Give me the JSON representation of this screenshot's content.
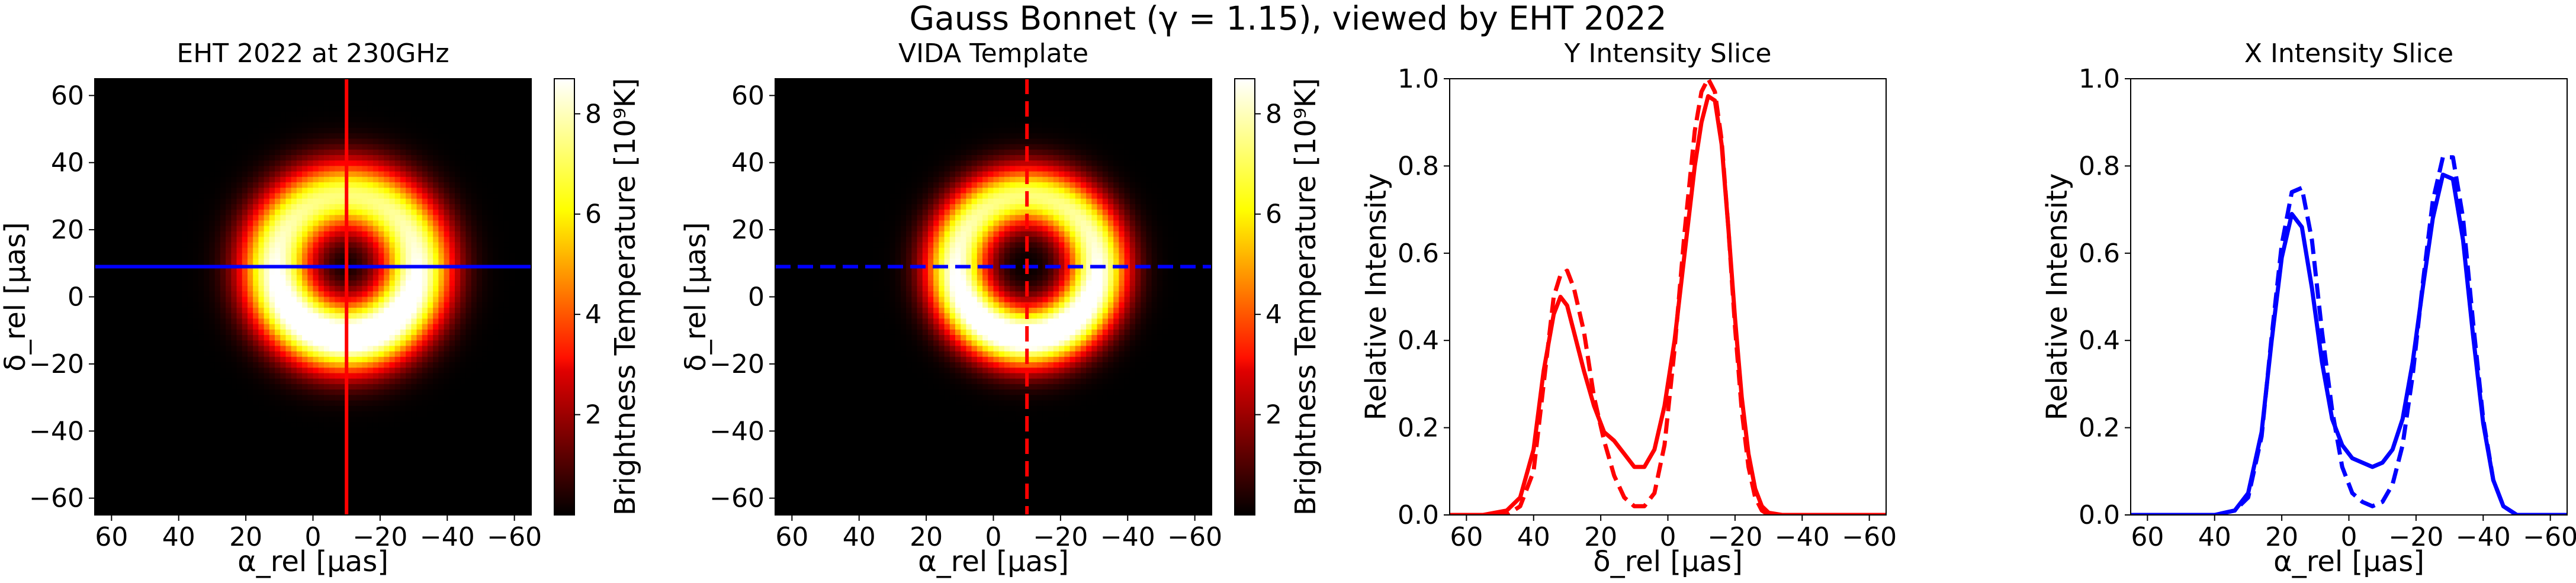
{
  "figure": {
    "suptitle": "Gauss Bonnet (γ = 1.15), viewed by EHT 2022"
  },
  "colorbar_label": "Brightness Temperature [10⁹K]",
  "colors": {
    "hline_blue": "#0000ff",
    "vline_red": "#ff0000",
    "cmap": "hot"
  },
  "chart_data": [
    {
      "type": "heatmap",
      "title": "EHT 2022 at 230GHz",
      "xlabel": "α_rel [μas]",
      "ylabel": "δ_rel [μas]",
      "xlim": [
        65,
        -65
      ],
      "ylim": [
        -65,
        65
      ],
      "xticks": [
        60,
        40,
        20,
        0,
        -20,
        -40,
        -60
      ],
      "yticks": [
        60,
        40,
        20,
        0,
        -20,
        -40,
        -60
      ],
      "ring": {
        "center": [
          -10,
          9
        ],
        "radius": 21,
        "width": 7.5,
        "peak": 8.7,
        "brighter_side": "bottom"
      },
      "colorbar": {
        "range": [
          0,
          8.7
        ],
        "ticks": [
          2,
          4,
          6,
          8
        ]
      },
      "slice_lines": {
        "vertical_x": -10,
        "horizontal_y": 9,
        "style": "solid"
      }
    },
    {
      "type": "heatmap",
      "title": "VIDA Template",
      "xlabel": "α_rel [μas]",
      "ylabel": "δ_rel [μas]",
      "xlim": [
        65,
        -65
      ],
      "ylim": [
        -65,
        65
      ],
      "xticks": [
        60,
        40,
        20,
        0,
        -20,
        -40,
        -60
      ],
      "yticks": [
        60,
        40,
        20,
        0,
        -20,
        -40,
        -60
      ],
      "ring": {
        "center": [
          -10,
          9
        ],
        "radius": 21,
        "width": 6.5,
        "peak": 8.7,
        "brighter_side": "bottom"
      },
      "colorbar": {
        "range": [
          0,
          8.7
        ],
        "ticks": [
          2,
          4,
          6,
          8
        ]
      },
      "slice_lines": {
        "vertical_x": -10,
        "horizontal_y": 9,
        "style": "dashed"
      }
    },
    {
      "type": "line",
      "title": "Y Intensity Slice",
      "xlabel": "δ_rel [μas]",
      "ylabel": "Relative Intensity",
      "xlim": [
        65,
        -65
      ],
      "ylim": [
        0,
        1.0
      ],
      "xticks": [
        60,
        40,
        20,
        0,
        -20,
        -40,
        -60
      ],
      "yticks": [
        0.0,
        0.2,
        0.4,
        0.6,
        0.8,
        1.0
      ],
      "color": "#ff0000",
      "series": [
        {
          "style": "solid",
          "x": [
            65,
            55,
            48,
            44,
            40,
            37,
            34,
            32,
            30,
            28,
            25,
            22,
            19,
            16,
            13,
            10,
            7,
            4,
            1,
            -2,
            -5,
            -8,
            -10,
            -12,
            -14,
            -16,
            -18,
            -20,
            -22,
            -24,
            -26,
            -28,
            -30,
            -34,
            -40,
            -50,
            -65
          ],
          "y": [
            0.0,
            0.0,
            0.01,
            0.04,
            0.15,
            0.33,
            0.46,
            0.5,
            0.48,
            0.42,
            0.33,
            0.25,
            0.19,
            0.17,
            0.14,
            0.11,
            0.11,
            0.15,
            0.25,
            0.4,
            0.6,
            0.8,
            0.9,
            0.96,
            0.95,
            0.85,
            0.66,
            0.45,
            0.27,
            0.14,
            0.06,
            0.02,
            0.005,
            0.0,
            0.0,
            0.0,
            0.0
          ]
        },
        {
          "style": "dashed",
          "x": [
            65,
            55,
            48,
            44,
            40,
            37,
            34,
            32,
            30,
            28,
            25,
            22,
            19,
            16,
            13,
            10,
            7,
            4,
            1,
            -2,
            -5,
            -8,
            -10,
            -12,
            -14,
            -16,
            -18,
            -20,
            -22,
            -24,
            -26,
            -28,
            -30,
            -34,
            -40,
            -50,
            -65
          ],
          "y": [
            0.0,
            0.0,
            0.0,
            0.02,
            0.1,
            0.3,
            0.5,
            0.55,
            0.56,
            0.52,
            0.42,
            0.27,
            0.17,
            0.09,
            0.04,
            0.02,
            0.02,
            0.05,
            0.16,
            0.38,
            0.65,
            0.88,
            0.97,
            1.0,
            0.97,
            0.86,
            0.66,
            0.43,
            0.24,
            0.11,
            0.04,
            0.01,
            0.0,
            0.0,
            0.0,
            0.0,
            0.0
          ]
        }
      ]
    },
    {
      "type": "line",
      "title": "X Intensity Slice",
      "xlabel": "α_rel [μas]",
      "ylabel": "Relative Intensity",
      "xlim": [
        65,
        -65
      ],
      "ylim": [
        0,
        1.0
      ],
      "xticks": [
        60,
        40,
        20,
        0,
        -20,
        -40,
        -60
      ],
      "yticks": [
        0.0,
        0.2,
        0.4,
        0.6,
        0.8,
        1.0
      ],
      "color": "#0000ff",
      "series": [
        {
          "style": "solid",
          "x": [
            65,
            50,
            40,
            34,
            30,
            26,
            23,
            20,
            17,
            14,
            11,
            8,
            5,
            2,
            -1,
            -4,
            -7,
            -10,
            -13,
            -16,
            -19,
            -22,
            -25,
            -28,
            -31,
            -34,
            -37,
            -40,
            -43,
            -46,
            -50,
            -56,
            -65
          ],
          "y": [
            0.0,
            0.0,
            0.0,
            0.01,
            0.05,
            0.19,
            0.4,
            0.59,
            0.69,
            0.66,
            0.52,
            0.35,
            0.22,
            0.16,
            0.13,
            0.12,
            0.11,
            0.12,
            0.15,
            0.22,
            0.35,
            0.52,
            0.68,
            0.78,
            0.77,
            0.63,
            0.41,
            0.21,
            0.08,
            0.02,
            0.0,
            0.0,
            0.0
          ]
        },
        {
          "style": "dashed",
          "x": [
            65,
            50,
            40,
            34,
            30,
            26,
            23,
            20,
            17,
            14,
            11,
            8,
            5,
            2,
            -1,
            -4,
            -7,
            -10,
            -13,
            -16,
            -19,
            -22,
            -25,
            -28,
            -31,
            -34,
            -37,
            -40,
            -43,
            -46,
            -50,
            -56,
            -65
          ],
          "y": [
            0.0,
            0.0,
            0.0,
            0.01,
            0.04,
            0.18,
            0.41,
            0.62,
            0.74,
            0.75,
            0.63,
            0.42,
            0.24,
            0.11,
            0.05,
            0.03,
            0.02,
            0.03,
            0.07,
            0.16,
            0.32,
            0.53,
            0.72,
            0.82,
            0.82,
            0.68,
            0.44,
            0.22,
            0.08,
            0.02,
            0.0,
            0.0,
            0.0
          ]
        }
      ]
    }
  ]
}
